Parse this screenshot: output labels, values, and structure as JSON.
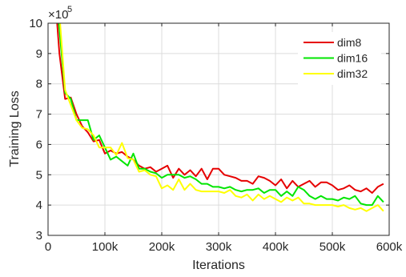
{
  "chart_data": {
    "type": "line",
    "xlabel": "Iterations",
    "ylabel": "Training Loss",
    "exponent_base": "×10",
    "exponent_power": "5",
    "xlim": [
      0,
      600000
    ],
    "ylim": [
      3,
      10
    ],
    "x_ticks": [
      0,
      100000,
      200000,
      300000,
      400000,
      500000,
      600000
    ],
    "x_tick_labels": [
      "0",
      "100k",
      "200k",
      "300k",
      "400k",
      "500k",
      "600k"
    ],
    "y_ticks": [
      3,
      4,
      5,
      6,
      7,
      8,
      9,
      10
    ],
    "y_tick_labels": [
      "3",
      "4",
      "5",
      "6",
      "7",
      "8",
      "9",
      "10"
    ],
    "grid": true,
    "legend_position": "top-right",
    "x": [
      10000,
      20000,
      30000,
      40000,
      50000,
      60000,
      70000,
      80000,
      90000,
      100000,
      110000,
      120000,
      130000,
      140000,
      150000,
      160000,
      170000,
      180000,
      190000,
      200000,
      210000,
      220000,
      230000,
      240000,
      250000,
      260000,
      270000,
      280000,
      290000,
      300000,
      310000,
      320000,
      330000,
      340000,
      350000,
      360000,
      370000,
      380000,
      390000,
      400000,
      410000,
      420000,
      430000,
      440000,
      450000,
      460000,
      470000,
      480000,
      490000,
      500000,
      510000,
      520000,
      530000,
      540000,
      550000,
      560000,
      570000,
      580000,
      590000
    ],
    "series": [
      {
        "name": "dim8",
        "color": "#e60000",
        "values": [
          11.5,
          9.0,
          7.5,
          7.55,
          7.0,
          6.6,
          6.4,
          6.1,
          6.15,
          5.7,
          5.8,
          5.7,
          5.75,
          5.6,
          5.5,
          5.3,
          5.2,
          5.25,
          5.1,
          5.2,
          5.3,
          4.9,
          5.2,
          5.0,
          5.15,
          4.95,
          5.2,
          4.85,
          5.2,
          5.2,
          5.0,
          4.95,
          4.9,
          4.8,
          4.8,
          4.7,
          4.95,
          4.9,
          4.8,
          4.65,
          4.85,
          4.55,
          4.8,
          4.6,
          4.7,
          4.8,
          4.6,
          4.75,
          4.75,
          4.65,
          4.5,
          4.55,
          4.65,
          4.5,
          4.45,
          4.55,
          4.4,
          4.6,
          4.7
        ]
      },
      {
        "name": "dim16",
        "color": "#00e600",
        "values": [
          11.5,
          9.8,
          7.7,
          7.5,
          6.8,
          6.8,
          6.8,
          6.15,
          6.3,
          5.9,
          5.5,
          5.6,
          5.45,
          5.3,
          5.7,
          5.2,
          5.2,
          5.1,
          5.05,
          4.9,
          5.0,
          5.0,
          5.0,
          4.9,
          4.95,
          4.85,
          4.7,
          4.7,
          4.6,
          4.6,
          4.55,
          4.6,
          4.5,
          4.45,
          4.5,
          4.5,
          4.55,
          4.4,
          4.5,
          4.5,
          4.3,
          4.45,
          4.3,
          4.6,
          4.5,
          4.3,
          4.2,
          4.3,
          4.2,
          4.2,
          4.15,
          4.25,
          4.2,
          4.3,
          4.05,
          4.0,
          4.0,
          4.3,
          4.1
        ]
      },
      {
        "name": "dim32",
        "color": "#ffff00",
        "values": [
          11.0,
          10.3,
          7.8,
          7.3,
          6.8,
          6.55,
          6.5,
          6.3,
          5.9,
          5.9,
          5.9,
          5.65,
          6.05,
          5.55,
          5.5,
          5.1,
          5.15,
          5.0,
          4.95,
          4.55,
          4.65,
          4.5,
          4.85,
          4.5,
          4.7,
          4.5,
          4.45,
          4.45,
          4.45,
          4.45,
          4.4,
          4.5,
          4.3,
          4.25,
          4.35,
          4.15,
          4.35,
          4.2,
          4.3,
          4.2,
          4.1,
          4.25,
          4.15,
          4.25,
          4.05,
          4.05,
          4.0,
          4.0,
          4.0,
          4.0,
          3.95,
          4.0,
          3.9,
          3.85,
          3.9,
          3.8,
          3.9,
          4.0,
          3.8
        ]
      }
    ]
  }
}
